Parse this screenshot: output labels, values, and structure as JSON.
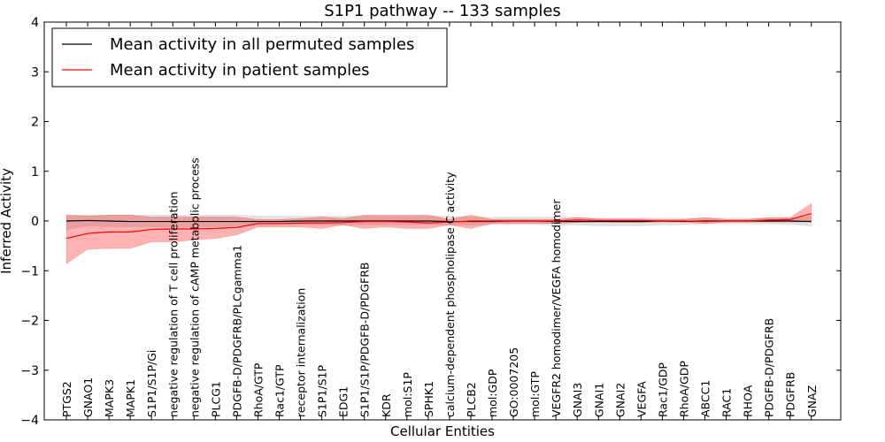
{
  "chart_data": {
    "type": "line",
    "title": "S1P1 pathway -- 133 samples",
    "xlabel": "Cellular Entities",
    "ylabel": "Inferred Activity",
    "ylim": [
      -4,
      4
    ],
    "yticks": [
      -4,
      -3,
      -2,
      -1,
      0,
      1,
      2,
      3,
      4
    ],
    "ytick_labels": [
      "−4",
      "−3",
      "−2",
      "−1",
      "0",
      "1",
      "2",
      "3",
      "4"
    ],
    "grid": false,
    "legend_position": "top-left",
    "categories": [
      "PTGS2",
      "GNAO1",
      "MAPK3",
      "MAPK1",
      "S1P1/S1P/Gi",
      "negative regulation of T cell proliferation",
      "negative regulation of cAMP metabolic process",
      "PLCG1",
      "PDGFB-D/PDGFRB/PLCgamma1",
      "RhoA/GTP",
      "Rac1/GTP",
      "receptor internalization",
      "S1P1/S1P",
      "EDG1",
      "S1P1/S1P/PDGFB-D/PDGFRB",
      "KDR",
      "mol:S1P",
      "SPHK1",
      "calcium-dependent phospholipase C activity",
      "PLCB2",
      "mol:GDP",
      "GO:0007205",
      "mol:GTP",
      "VEGFR2 homodimer/VEGFA homodimer",
      "GNAI3",
      "GNAI1",
      "GNAI2",
      "VEGFA",
      "Rac1/GDP",
      "RhoA/GDP",
      "ABCC1",
      "RAC1",
      "RHOA",
      "PDGFB-D/PDGFRB",
      "PDGFRB",
      "GNAZ"
    ],
    "series": [
      {
        "name": "Mean activity in all permuted samples",
        "color": "#000000",
        "band_color": "#bfbfbf",
        "values": [
          0.0,
          0.01,
          0.0,
          -0.01,
          -0.01,
          -0.01,
          -0.01,
          -0.01,
          -0.01,
          -0.01,
          -0.01,
          0.0,
          0.0,
          0.0,
          0.0,
          0.0,
          0.0,
          0.0,
          -0.01,
          -0.01,
          -0.01,
          0.0,
          0.0,
          -0.01,
          -0.01,
          -0.01,
          -0.01,
          -0.01,
          0.0,
          -0.01,
          0.0,
          0.0,
          0.0,
          0.0,
          0.0,
          -0.01
        ],
        "lower": [
          -0.18,
          -0.1,
          -0.12,
          -0.12,
          -0.12,
          -0.12,
          -0.12,
          -0.12,
          -0.1,
          -0.1,
          -0.08,
          -0.08,
          -0.08,
          -0.08,
          -0.08,
          -0.08,
          -0.08,
          -0.08,
          -0.08,
          -0.08,
          -0.07,
          -0.07,
          -0.07,
          -0.08,
          -0.08,
          -0.1,
          -0.1,
          -0.1,
          -0.08,
          -0.08,
          -0.06,
          -0.06,
          -0.06,
          -0.06,
          -0.07,
          -0.1
        ],
        "upper": [
          0.12,
          0.12,
          0.12,
          0.12,
          0.12,
          0.12,
          0.12,
          0.12,
          0.12,
          0.1,
          0.1,
          0.1,
          0.1,
          0.1,
          0.1,
          0.1,
          0.1,
          0.1,
          0.1,
          0.08,
          0.08,
          0.08,
          0.08,
          0.08,
          0.08,
          0.06,
          0.06,
          0.06,
          0.06,
          0.06,
          0.06,
          0.06,
          0.06,
          0.06,
          0.06,
          0.1
        ]
      },
      {
        "name": "Mean activity in patient samples",
        "color": "#ff0000",
        "band_color": "#ff0000",
        "values": [
          -0.35,
          -0.25,
          -0.22,
          -0.22,
          -0.17,
          -0.16,
          -0.16,
          -0.15,
          -0.13,
          -0.05,
          -0.05,
          -0.04,
          -0.04,
          -0.03,
          -0.01,
          -0.01,
          -0.02,
          -0.04,
          -0.02,
          0.0,
          0.0,
          0.0,
          0.0,
          0.0,
          0.02,
          0.01,
          0.01,
          0.01,
          0.0,
          0.0,
          -0.01,
          0.0,
          0.0,
          0.02,
          0.03,
          0.15
        ],
        "lower": [
          -0.86,
          -0.57,
          -0.55,
          -0.55,
          -0.42,
          -0.42,
          -0.38,
          -0.35,
          -0.28,
          -0.12,
          -0.12,
          -0.12,
          -0.15,
          -0.08,
          -0.15,
          -0.12,
          -0.15,
          -0.15,
          -0.08,
          -0.15,
          -0.05,
          -0.05,
          -0.05,
          -0.05,
          -0.03,
          -0.02,
          -0.03,
          -0.03,
          -0.02,
          -0.02,
          -0.05,
          -0.02,
          -0.02,
          -0.02,
          -0.02,
          -0.02
        ],
        "upper": [
          0.12,
          0.1,
          0.12,
          0.12,
          0.08,
          0.08,
          0.08,
          0.08,
          0.08,
          0.03,
          0.03,
          0.05,
          0.08,
          0.05,
          0.12,
          0.12,
          0.12,
          0.12,
          0.03,
          0.12,
          0.03,
          0.03,
          0.03,
          0.03,
          0.07,
          0.04,
          0.04,
          0.04,
          0.03,
          0.03,
          0.07,
          0.03,
          0.03,
          0.07,
          0.07,
          0.35
        ]
      }
    ]
  }
}
